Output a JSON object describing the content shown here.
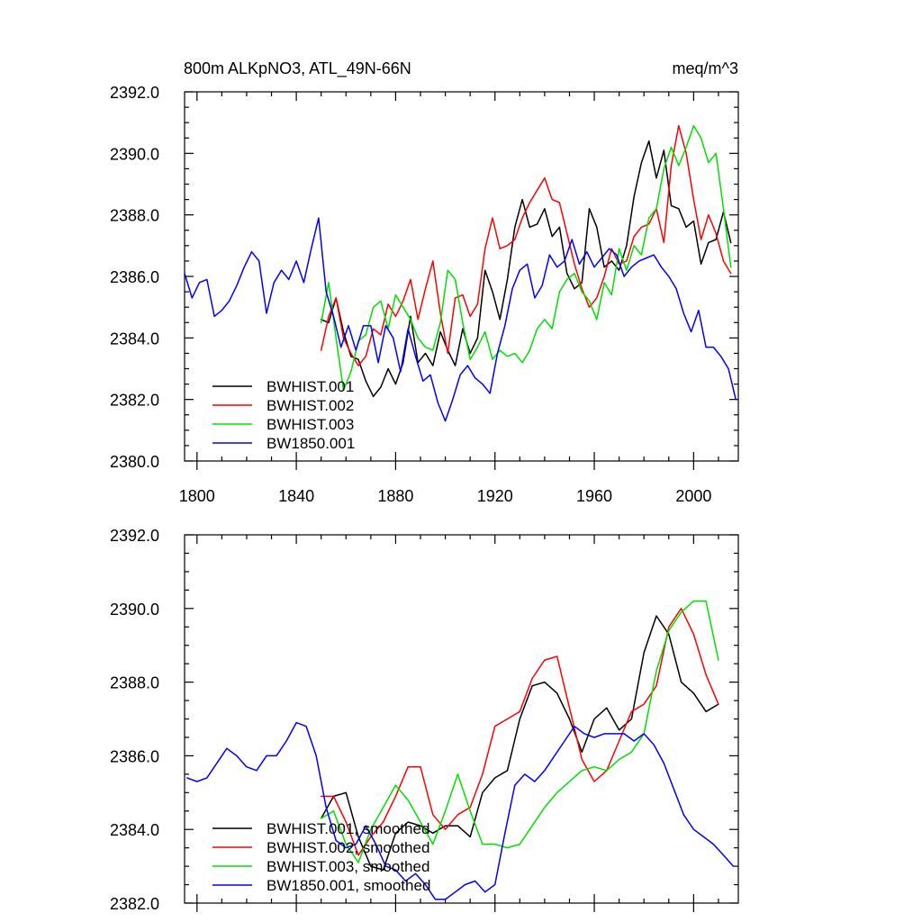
{
  "colors": {
    "BWHIST.001": "#000000",
    "BWHIST.002": "#ff0000",
    "BWHIST.003": "#00e000",
    "BW1850.001": "#0000ff"
  },
  "chart_data": [
    {
      "type": "line",
      "title_left": "800m ALKpNO3, ATL_49N-66N",
      "title_right": "meq/m^3",
      "xlim": [
        1795,
        2018
      ],
      "ylim": [
        2380,
        2392
      ],
      "xticks": [
        1800,
        1840,
        1880,
        1920,
        1960,
        2000
      ],
      "xtick_labels": [
        "1800",
        "1840",
        "1880",
        "1920",
        "1960",
        "2000"
      ],
      "yticks": [
        2380,
        2382,
        2384,
        2386,
        2388,
        2390,
        2392
      ],
      "ytick_labels": [
        "2380.0",
        "2382.0",
        "2384.0",
        "2386.0",
        "2388.0",
        "2390.0",
        "2392.0"
      ],
      "legend": [
        "BWHIST.001",
        "BWHIST.002",
        "BWHIST.003",
        "BW1850.001"
      ],
      "series": [
        {
          "name": "BWHIST.001",
          "x": [
            1850,
            1853,
            1856,
            1859,
            1862,
            1865,
            1868,
            1871,
            1874,
            1877,
            1880,
            1883,
            1886,
            1889,
            1892,
            1895,
            1898,
            1901,
            1904,
            1907,
            1910,
            1913,
            1916,
            1919,
            1922,
            1925,
            1928,
            1931,
            1934,
            1937,
            1940,
            1943,
            1946,
            1949,
            1952,
            1955,
            1958,
            1961,
            1964,
            1967,
            1970,
            1973,
            1976,
            1979,
            1982,
            1985,
            1988,
            1991,
            1994,
            1997,
            2000,
            2003,
            2006,
            2009,
            2012,
            2015
          ],
          "y": [
            2384.6,
            2384.5,
            2385.3,
            2384.2,
            2383.4,
            2383.3,
            2382.6,
            2382.1,
            2382.4,
            2383.0,
            2382.5,
            2383.2,
            2384.7,
            2383.2,
            2383.5,
            2383.1,
            2384.2,
            2383.6,
            2383.1,
            2384.3,
            2383.5,
            2384.0,
            2386.2,
            2385.5,
            2384.6,
            2385.9,
            2387.6,
            2388.5,
            2387.6,
            2387.7,
            2388.2,
            2387.3,
            2387.6,
            2386.1,
            2385.6,
            2385.8,
            2388.2,
            2387.6,
            2386.3,
            2386.5,
            2386.2,
            2387.0,
            2388.6,
            2389.7,
            2390.4,
            2389.2,
            2390.1,
            2388.3,
            2388.2,
            2387.6,
            2387.8,
            2386.4,
            2387.1,
            2387.2,
            2388.1,
            2387.1
          ]
        },
        {
          "name": "BWHIST.002",
          "x": [
            1850,
            1853,
            1856,
            1859,
            1862,
            1865,
            1868,
            1871,
            1874,
            1877,
            1880,
            1883,
            1886,
            1889,
            1892,
            1895,
            1898,
            1901,
            1904,
            1907,
            1910,
            1913,
            1916,
            1919,
            1922,
            1925,
            1928,
            1931,
            1934,
            1937,
            1940,
            1943,
            1946,
            1949,
            1952,
            1955,
            1958,
            1961,
            1964,
            1967,
            1970,
            1973,
            1976,
            1979,
            1982,
            1985,
            1988,
            1991,
            1994,
            1997,
            2000,
            2003,
            2006,
            2009,
            2012,
            2015
          ],
          "y": [
            2383.6,
            2384.7,
            2385.3,
            2384.0,
            2383.5,
            2383.1,
            2383.4,
            2384.3,
            2384.1,
            2385.1,
            2384.7,
            2385.2,
            2385.9,
            2384.6,
            2385.6,
            2386.5,
            2384.8,
            2383.5,
            2385.3,
            2385.4,
            2384.7,
            2385.1,
            2386.9,
            2387.9,
            2386.9,
            2387.0,
            2387.2,
            2387.9,
            2388.4,
            2388.8,
            2389.2,
            2388.5,
            2388.4,
            2387.4,
            2386.4,
            2385.6,
            2385.0,
            2385.3,
            2386.0,
            2386.9,
            2386.4,
            2386.5,
            2387.3,
            2387.6,
            2387.7,
            2388.2,
            2387.1,
            2389.6,
            2390.9,
            2390.0,
            2388.5,
            2387.2,
            2388.0,
            2387.4,
            2386.5,
            2386.1
          ]
        },
        {
          "name": "BWHIST.003",
          "x": [
            1850,
            1853,
            1856,
            1859,
            1862,
            1865,
            1868,
            1871,
            1874,
            1877,
            1880,
            1883,
            1886,
            1889,
            1892,
            1895,
            1898,
            1901,
            1904,
            1907,
            1910,
            1913,
            1916,
            1919,
            1922,
            1925,
            1928,
            1931,
            1934,
            1937,
            1940,
            1943,
            1946,
            1949,
            1952,
            1955,
            1958,
            1961,
            1964,
            1967,
            1970,
            1973,
            1976,
            1979,
            1982,
            1985,
            1988,
            1991,
            1994,
            1997,
            2000,
            2003,
            2006,
            2009,
            2012,
            2015
          ],
          "y": [
            2384.5,
            2385.8,
            2384.0,
            2382.3,
            2382.9,
            2383.9,
            2384.1,
            2385.0,
            2385.2,
            2384.3,
            2385.4,
            2385.0,
            2384.6,
            2384.0,
            2383.7,
            2383.6,
            2384.5,
            2386.2,
            2385.9,
            2384.5,
            2383.3,
            2383.7,
            2384.2,
            2383.3,
            2383.6,
            2383.4,
            2383.5,
            2383.2,
            2383.6,
            2384.3,
            2384.6,
            2384.3,
            2385.5,
            2385.9,
            2386.1,
            2385.5,
            2385.2,
            2384.6,
            2385.8,
            2385.4,
            2386.9,
            2386.2,
            2387.0,
            2386.7,
            2387.9,
            2388.2,
            2389.5,
            2390.2,
            2389.6,
            2390.2,
            2390.9,
            2390.5,
            2389.7,
            2390.0,
            2388.2,
            2386.3
          ]
        },
        {
          "name": "BW1850.001",
          "x": [
            1795,
            1798,
            1801,
            1804,
            1807,
            1810,
            1813,
            1816,
            1819,
            1822,
            1825,
            1828,
            1831,
            1834,
            1837,
            1840,
            1843,
            1846,
            1849,
            1852,
            1855,
            1858,
            1861,
            1864,
            1867,
            1870,
            1873,
            1876,
            1879,
            1882,
            1885,
            1888,
            1891,
            1894,
            1897,
            1900,
            1903,
            1906,
            1909,
            1912,
            1915,
            1918,
            1921,
            1924,
            1927,
            1930,
            1933,
            1936,
            1939,
            1942,
            1945,
            1948,
            1951,
            1954,
            1957,
            1960,
            1963,
            1966,
            1969,
            1972,
            1975,
            1978,
            1981,
            1984,
            1987,
            1990,
            1993,
            1996,
            1999,
            2002,
            2005,
            2008,
            2011,
            2014,
            2017
          ],
          "y": [
            2386.1,
            2385.3,
            2385.8,
            2385.9,
            2384.7,
            2384.9,
            2385.2,
            2385.7,
            2386.3,
            2386.8,
            2386.5,
            2384.8,
            2385.8,
            2386.2,
            2385.9,
            2386.5,
            2385.8,
            2386.9,
            2387.9,
            2385.5,
            2384.7,
            2383.7,
            2384.4,
            2383.6,
            2384.4,
            2384.4,
            2383.2,
            2384.4,
            2384.0,
            2382.9,
            2384.3,
            2383.4,
            2382.6,
            2382.8,
            2381.9,
            2381.3,
            2382.0,
            2382.8,
            2383.1,
            2382.7,
            2382.5,
            2382.2,
            2383.5,
            2384.4,
            2385.6,
            2386.2,
            2386.4,
            2385.3,
            2385.7,
            2386.7,
            2386.3,
            2386.5,
            2387.2,
            2386.4,
            2386.8,
            2386.3,
            2386.6,
            2386.9,
            2386.7,
            2386.0,
            2386.3,
            2386.5,
            2386.6,
            2386.7,
            2386.3,
            2386.0,
            2385.6,
            2384.8,
            2384.2,
            2384.9,
            2383.7,
            2383.7,
            2383.4,
            2383.0,
            2382.0
          ]
        }
      ]
    },
    {
      "type": "line",
      "title_left": "",
      "title_right": "",
      "xlim": [
        1795,
        2018
      ],
      "ylim": [
        2382,
        2392
      ],
      "xticks": [
        1800,
        1840,
        1880,
        1920,
        1960,
        2000
      ],
      "xtick_labels": [],
      "yticks": [
        2382,
        2384,
        2386,
        2388,
        2390,
        2392
      ],
      "ytick_labels": [
        "2382.0",
        "2384.0",
        "2386.0",
        "2388.0",
        "2390.0",
        "2392.0"
      ],
      "legend": [
        "BWHIST.001, smoothed",
        "BWHIST.002, smoothed",
        "BWHIST.003, smoothed",
        "BW1850.001, smoothed"
      ],
      "series": [
        {
          "name": "BWHIST.001, smoothed",
          "x": [
            1850,
            1855,
            1860,
            1865,
            1870,
            1875,
            1880,
            1885,
            1890,
            1895,
            1900,
            1905,
            1910,
            1915,
            1920,
            1925,
            1930,
            1935,
            1940,
            1945,
            1950,
            1955,
            1960,
            1965,
            1970,
            1975,
            1980,
            1985,
            1990,
            1995,
            2000,
            2005,
            2010
          ],
          "y": [
            2384.3,
            2384.9,
            2385.0,
            2383.8,
            2383.0,
            2382.9,
            2383.9,
            2384.2,
            2384.1,
            2383.9,
            2384.1,
            2384.1,
            2383.8,
            2385.0,
            2385.4,
            2385.6,
            2387.0,
            2387.9,
            2388.0,
            2387.7,
            2387.0,
            2386.1,
            2387.0,
            2387.3,
            2386.7,
            2387.0,
            2388.8,
            2389.8,
            2389.3,
            2388.0,
            2387.7,
            2387.2,
            2387.4
          ]
        },
        {
          "name": "BWHIST.002, smoothed",
          "x": [
            1850,
            1855,
            1860,
            1865,
            1870,
            1875,
            1880,
            1885,
            1890,
            1895,
            1900,
            1905,
            1910,
            1915,
            1920,
            1925,
            1930,
            1935,
            1940,
            1945,
            1950,
            1955,
            1960,
            1965,
            1970,
            1975,
            1980,
            1985,
            1990,
            1995,
            2000,
            2005,
            2010
          ],
          "y": [
            2384.9,
            2384.9,
            2384.2,
            2383.3,
            2383.8,
            2384.2,
            2384.9,
            2385.7,
            2385.7,
            2384.4,
            2384.0,
            2384.4,
            2384.6,
            2385.5,
            2386.8,
            2387.0,
            2387.2,
            2388.1,
            2388.6,
            2388.7,
            2387.3,
            2385.9,
            2385.3,
            2385.6,
            2386.4,
            2387.2,
            2387.4,
            2387.9,
            2389.5,
            2390.0,
            2389.3,
            2388.2,
            2387.4
          ]
        },
        {
          "name": "BWHIST.003, smoothed",
          "x": [
            1850,
            1855,
            1860,
            1865,
            1870,
            1875,
            1880,
            1885,
            1890,
            1895,
            1900,
            1905,
            1910,
            1915,
            1920,
            1925,
            1930,
            1935,
            1940,
            1945,
            1950,
            1955,
            1960,
            1965,
            1970,
            1975,
            1980,
            1985,
            1990,
            1995,
            2000,
            2005,
            2010
          ],
          "y": [
            2384.3,
            2384.5,
            2383.6,
            2383.1,
            2384.0,
            2384.6,
            2385.2,
            2384.8,
            2384.2,
            2383.6,
            2384.5,
            2385.5,
            2384.5,
            2383.6,
            2383.6,
            2383.5,
            2383.6,
            2384.1,
            2384.6,
            2385.0,
            2385.3,
            2385.6,
            2385.7,
            2385.6,
            2385.9,
            2386.1,
            2386.6,
            2388.3,
            2389.4,
            2389.9,
            2390.2,
            2390.2,
            2388.6
          ]
        },
        {
          "name": "BW1850.001, smoothed",
          "x": [
            1796,
            1800,
            1804,
            1808,
            1812,
            1816,
            1820,
            1824,
            1828,
            1832,
            1836,
            1840,
            1844,
            1848,
            1852,
            1856,
            1860,
            1864,
            1868,
            1872,
            1876,
            1880,
            1884,
            1888,
            1892,
            1896,
            1900,
            1904,
            1908,
            1912,
            1916,
            1920,
            1924,
            1928,
            1932,
            1936,
            1940,
            1944,
            1948,
            1952,
            1956,
            1960,
            1964,
            1968,
            1972,
            1976,
            1980,
            1984,
            1988,
            1992,
            1996,
            2000,
            2004,
            2008,
            2012,
            2016
          ],
          "y": [
            2385.4,
            2385.3,
            2385.4,
            2385.8,
            2386.2,
            2386.0,
            2385.7,
            2385.6,
            2386.0,
            2386.0,
            2386.4,
            2386.9,
            2386.8,
            2386.0,
            2384.6,
            2383.7,
            2383.5,
            2383.6,
            2384.1,
            2383.6,
            2383.0,
            2382.9,
            2382.6,
            2382.8,
            2382.5,
            2382.1,
            2382.1,
            2382.3,
            2382.5,
            2382.6,
            2382.3,
            2382.5,
            2383.9,
            2385.2,
            2385.5,
            2385.3,
            2385.6,
            2386.0,
            2386.4,
            2386.8,
            2386.6,
            2386.5,
            2386.6,
            2386.6,
            2386.6,
            2386.4,
            2386.6,
            2386.3,
            2385.8,
            2385.1,
            2384.4,
            2384.0,
            2383.8,
            2383.6,
            2383.3,
            2383.0
          ]
        }
      ]
    }
  ]
}
